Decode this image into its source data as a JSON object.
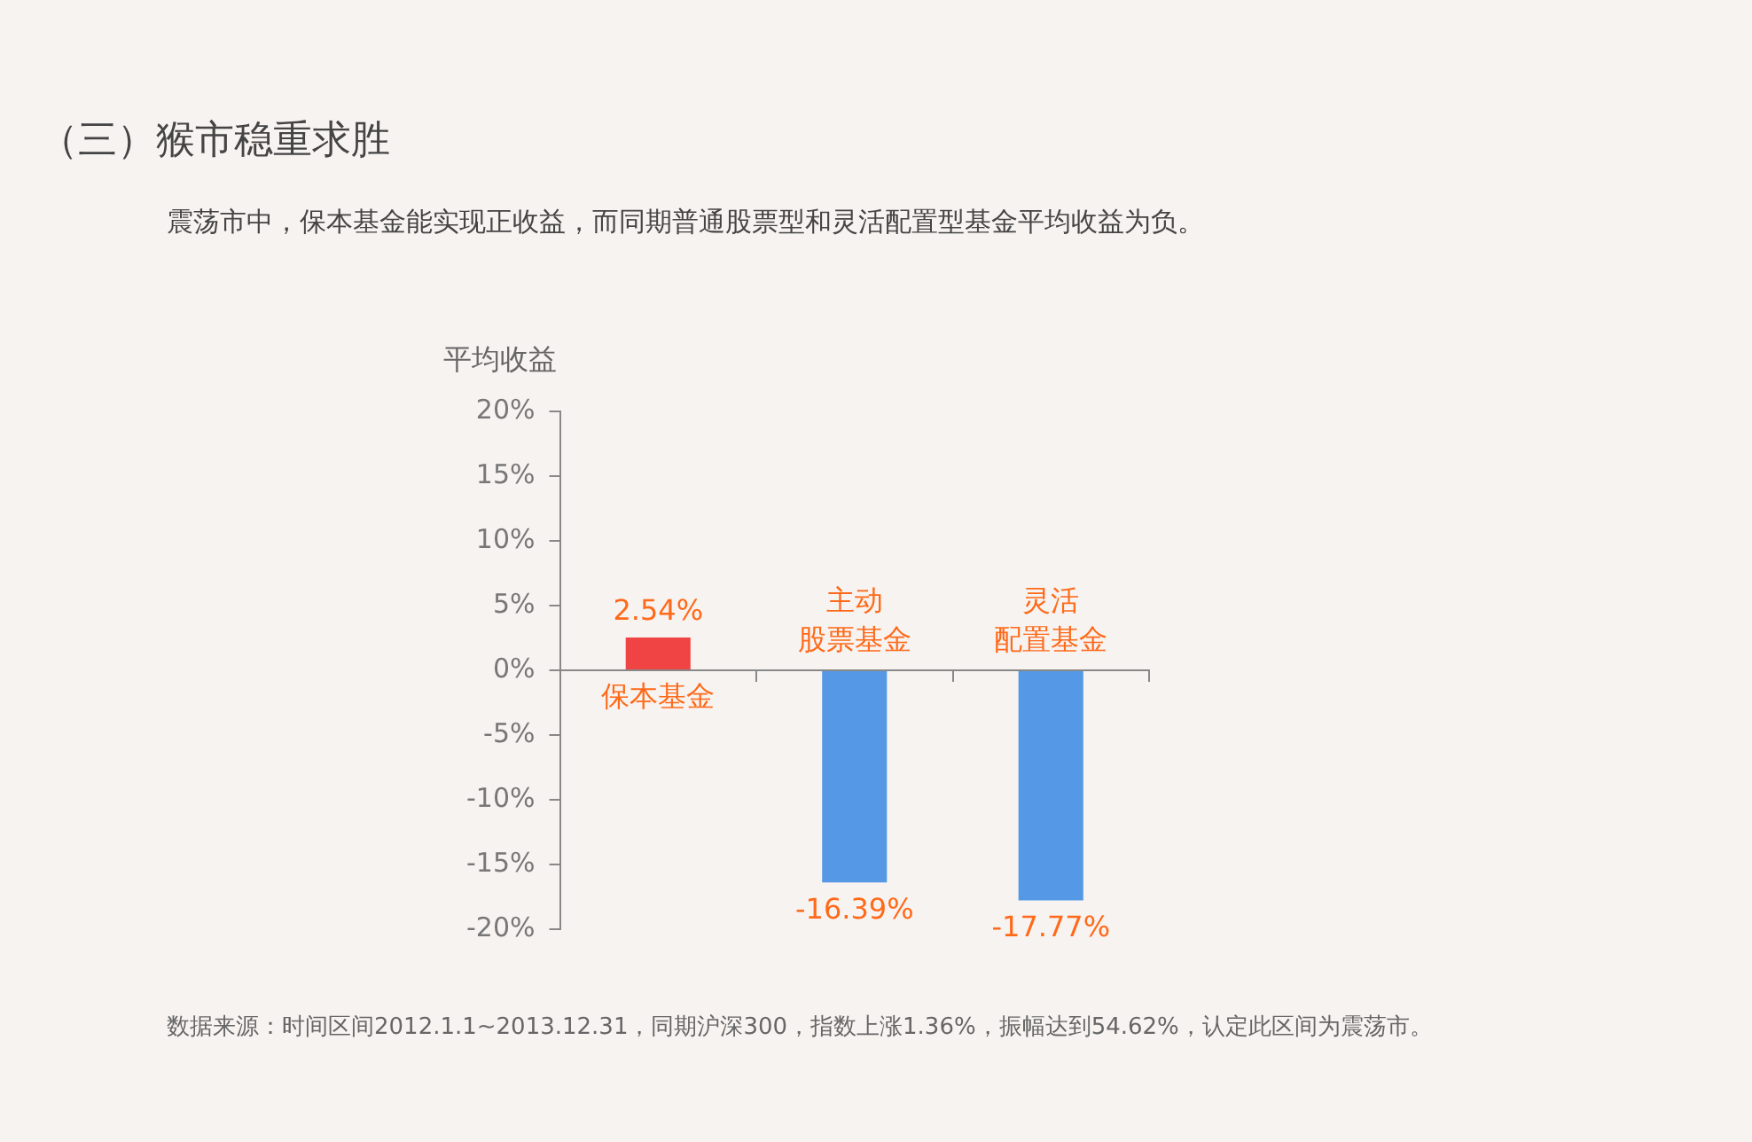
{
  "chart_data": {
    "type": "bar",
    "title": "（三）猴市稳重求胜",
    "subtitle": "震荡市中，保本基金能实现正收益，而同期普通股票型和灵活配置型基金平均收益为负。",
    "ylabel": "平均收益",
    "categories": [
      "保本基金",
      "主动股票基金",
      "灵活配置基金"
    ],
    "values": [
      2.54,
      -16.39,
      -17.77
    ],
    "colors": [
      "#f04444",
      "#5599e6",
      "#5599e6"
    ],
    "value_labels": [
      "2.54%",
      "-16.39%",
      "-17.77%"
    ],
    "ylim": [
      -20,
      20
    ],
    "yticks": [
      {
        "value": -20,
        "label": "-20%"
      },
      {
        "value": -15,
        "label": "-15%"
      },
      {
        "value": -10,
        "label": "-10%"
      },
      {
        "value": -5,
        "label": "-5%"
      },
      {
        "value": 0,
        "label": "0%"
      },
      {
        "value": 5,
        "label": "5%"
      },
      {
        "value": 10,
        "label": "10%"
      },
      {
        "value": 15,
        "label": "15%"
      },
      {
        "value": 20,
        "label": "20%"
      }
    ],
    "grid": false,
    "legend": false,
    "annotations": [
      "数据来源：时间区间2012.1.1~2013.12.31，同期沪深300，指数上涨1.36%，振幅达到54.62%，认定此区间为震荡市。"
    ]
  }
}
